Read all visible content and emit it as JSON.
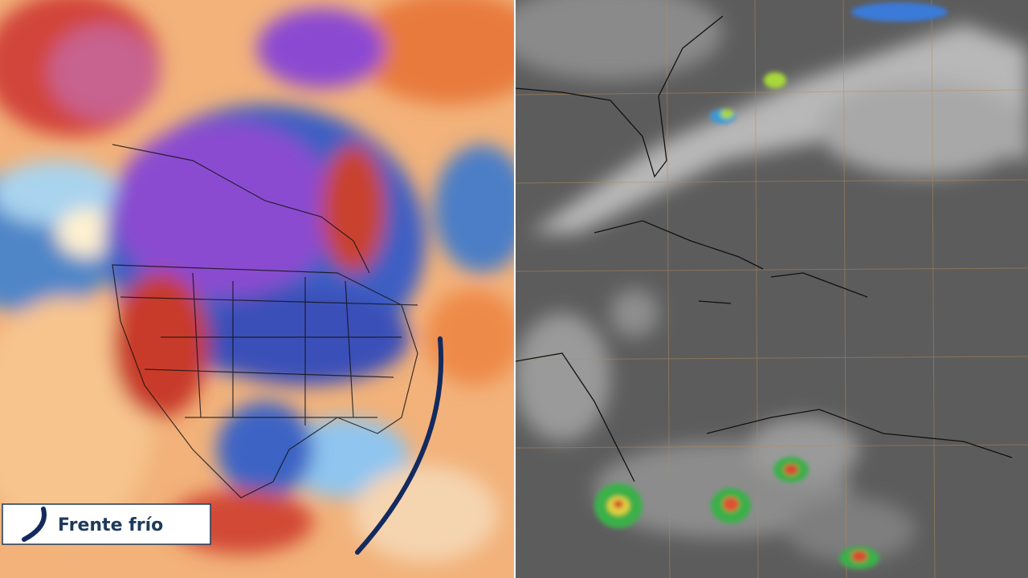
{
  "legend": {
    "label": "Frente frío"
  }
}
